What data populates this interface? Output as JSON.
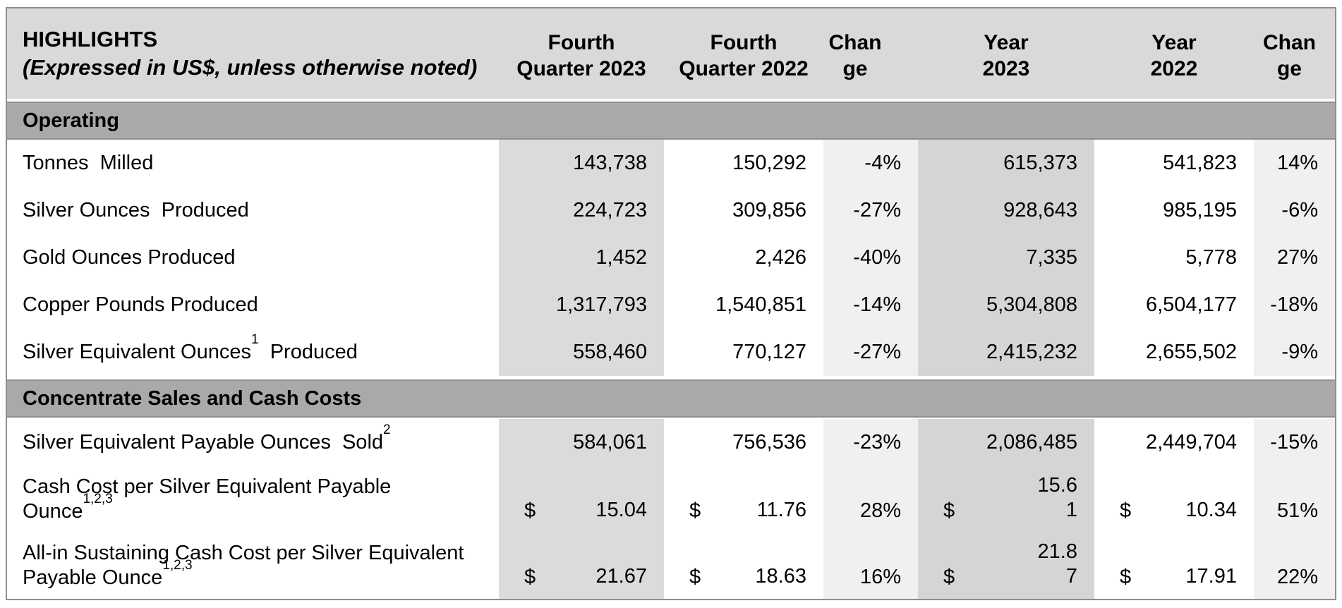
{
  "table": {
    "title": {
      "line1": "HIGHLIGHTS",
      "line2": "(Expressed in US$, unless otherwise noted)"
    },
    "column_headers": [
      {
        "id": "fourth-quarter-2023",
        "lines": [
          "Fourth",
          "Quarter 2023"
        ]
      },
      {
        "id": "fourth-quarter-2022",
        "lines": [
          "Fourth",
          "Quarter 2022"
        ]
      },
      {
        "id": "change-quarter",
        "lines": [
          "Chan",
          "ge"
        ]
      },
      {
        "id": "year-2023",
        "lines": [
          "Year",
          "2023"
        ]
      },
      {
        "id": "year-2022",
        "lines": [
          "Year",
          "2022"
        ]
      },
      {
        "id": "change-year",
        "lines": [
          "Chan",
          "ge"
        ]
      }
    ],
    "sections": [
      {
        "heading": "Operating",
        "rows": [
          {
            "label": [
              {
                "text": "Tonnes  Milled"
              }
            ],
            "cells": [
              "143,738",
              "150,292",
              "-4%",
              "615,373",
              "541,823",
              "14%"
            ]
          },
          {
            "label": [
              {
                "text": "Silver Ounces  Produced"
              }
            ],
            "cells": [
              "224,723",
              "309,856",
              "-27%",
              "928,643",
              "985,195",
              "-6%"
            ]
          },
          {
            "label": [
              {
                "text": "Gold Ounces Produced"
              }
            ],
            "cells": [
              "1,452",
              "2,426",
              "-40%",
              "7,335",
              "5,778",
              "27%"
            ]
          },
          {
            "label": [
              {
                "text": "Copper Pounds Produced"
              }
            ],
            "cells": [
              "1,317,793",
              "1,540,851",
              "-14%",
              "5,304,808",
              "6,504,177",
              "-18%"
            ]
          },
          {
            "label": [
              {
                "text": "Silver Equivalent Ounces"
              },
              {
                "sup": "1"
              },
              {
                "text": "  Produced"
              }
            ],
            "cells": [
              "558,460",
              "770,127",
              "-27%",
              "2,415,232",
              "2,655,502",
              "-9%"
            ]
          }
        ]
      },
      {
        "heading": "Concentrate Sales and Cash Costs",
        "rows": [
          {
            "label": [
              {
                "text": "Silver Equivalent Payable Ounces  Sold"
              },
              {
                "sup": "2"
              }
            ],
            "cells": [
              "584,061",
              "756,536",
              "-23%",
              "2,086,485",
              "2,449,704",
              "-15%"
            ]
          },
          {
            "label": [
              {
                "text": "Cash Cost per Silver Equivalent Payable Ounce"
              },
              {
                "sup": "1,2,3"
              }
            ],
            "tall": true,
            "cells": [
              {
                "currency": "$",
                "lines": [
                  "15.04"
                ]
              },
              {
                "currency": "$",
                "lines": [
                  "11.76"
                ]
              },
              "28%",
              {
                "currency": "$",
                "lines": [
                  "15.6",
                  "1"
                ]
              },
              {
                "currency": "$",
                "lines": [
                  "10.34"
                ]
              },
              "51%"
            ]
          },
          {
            "label": [
              {
                "text": "All-in Sustaining Cash Cost per Silver Equivalent Payable Ounce"
              },
              {
                "sup": "1,2,3"
              }
            ],
            "tall": true,
            "cells": [
              {
                "currency": "$",
                "lines": [
                  "21.67"
                ]
              },
              {
                "currency": "$",
                "lines": [
                  "18.63"
                ]
              },
              "16%",
              {
                "currency": "$",
                "lines": [
                  "21.8",
                  "7"
                ]
              },
              {
                "currency": "$",
                "lines": [
                  "17.91"
                ]
              },
              "22%"
            ]
          }
        ]
      }
    ]
  },
  "colors": {
    "header_bg": "#d9d9d9",
    "section_band_bg": "#a9a9a9",
    "shaded_col_quarter": "#dbdbdb",
    "shaded_col_year": "#d5d5d5",
    "change_col_bg": "#f0f0f0",
    "border": "#8f8f8f"
  }
}
